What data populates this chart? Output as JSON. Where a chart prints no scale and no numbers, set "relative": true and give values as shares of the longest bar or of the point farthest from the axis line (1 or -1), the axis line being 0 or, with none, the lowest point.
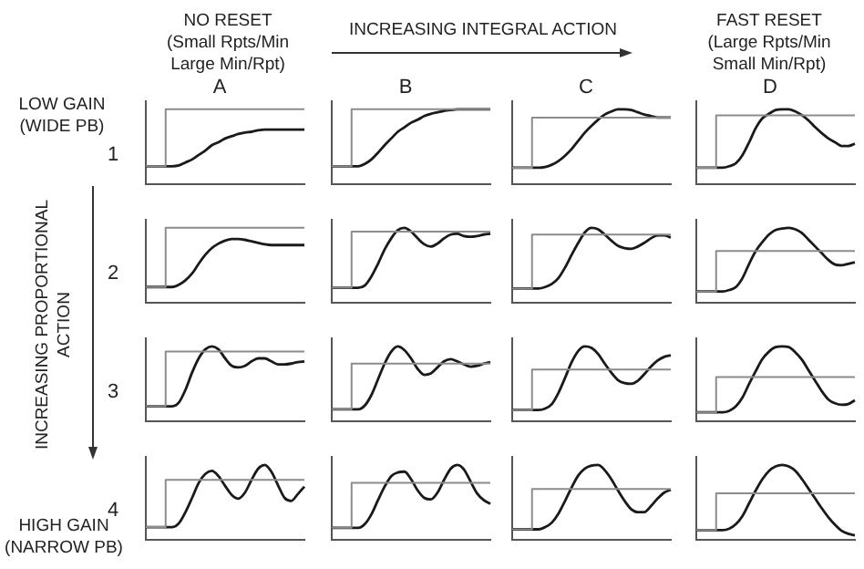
{
  "chart_data": [
    {
      "type": "other",
      "annotations": [
        "NO RESET",
        "(Small Rpts/Min Large Min/Rpt)",
        "INCREASING INTEGRAL ACTION",
        "FAST RESET",
        "(Large Rpts/Min Small Min/Rpt)",
        "LOW GAIN (WIDE PB)",
        "INCREASING PROPORTIONAL ACTION",
        "HIGH GAIN (NARROW PB)"
      ]
    },
    {
      "type": "line",
      "relative": true,
      "title": "A",
      "ylabel": "1",
      "categories": [
        null,
        null,
        null,
        null,
        null,
        null,
        null,
        null,
        null,
        null,
        null,
        null,
        null,
        null,
        null,
        null,
        null,
        null,
        null,
        null,
        null,
        null,
        null,
        null,
        null
      ],
      "series": [
        {
          "type": "step",
          "color": "#8c8c8c",
          "values": [
            0.24,
            0.24,
            0.24,
            0.24,
            1,
            1,
            1,
            1,
            1,
            1,
            1,
            1,
            1,
            1,
            1,
            1,
            1,
            1,
            1,
            1,
            1,
            1,
            1,
            1,
            1
          ]
        },
        {
          "color": "#1a1a1a",
          "values": [
            0.24,
            0.24,
            0.24,
            0.24,
            0.24,
            0.25,
            0.29,
            0.33,
            0.39,
            0.45,
            0.52,
            0.56,
            0.61,
            0.64,
            0.67,
            0.69,
            0.7,
            0.72,
            0.73,
            0.73,
            0.73,
            0.73,
            0.73,
            0.73,
            0.73
          ]
        }
      ]
    },
    {
      "type": "line",
      "relative": true,
      "title": "B",
      "categories": [
        null,
        null,
        null,
        null,
        null,
        null,
        null,
        null,
        null,
        null,
        null,
        null,
        null,
        null,
        null,
        null,
        null,
        null,
        null,
        null,
        null,
        null,
        null,
        null,
        null
      ],
      "series": [
        {
          "type": "step",
          "color": "#8c8c8c",
          "values": [
            0.24,
            0.24,
            0.24,
            0.24,
            1,
            1,
            1,
            1,
            1,
            1,
            1,
            1,
            1,
            1,
            1,
            1,
            1,
            1,
            1,
            1,
            1,
            1,
            1,
            1,
            1
          ]
        },
        {
          "color": "#1a1a1a",
          "values": [
            0.24,
            0.24,
            0.24,
            0.24,
            0.24,
            0.27,
            0.33,
            0.42,
            0.52,
            0.61,
            0.7,
            0.76,
            0.82,
            0.86,
            0.91,
            0.94,
            0.96,
            0.98,
            0.99,
            1,
            1,
            1,
            1,
            1,
            1
          ]
        }
      ]
    },
    {
      "type": "line",
      "relative": true,
      "title": "C",
      "categories": [
        null,
        null,
        null,
        null,
        null,
        null,
        null,
        null,
        null,
        null,
        null,
        null,
        null,
        null,
        null,
        null,
        null,
        null,
        null,
        null,
        null,
        null,
        null,
        null,
        null
      ],
      "series": [
        {
          "type": "step",
          "color": "#8c8c8c",
          "values": [
            0.22,
            0.22,
            0.22,
            0.22,
            0.89,
            0.89,
            0.89,
            0.89,
            0.89,
            0.89,
            0.89,
            0.89,
            0.89,
            0.89,
            0.89,
            0.89,
            0.89,
            0.89,
            0.89,
            0.89,
            0.89,
            0.89,
            0.89,
            0.89,
            0.89
          ]
        },
        {
          "color": "#1a1a1a",
          "values": [
            0.22,
            0.22,
            0.22,
            0.22,
            0.22,
            0.23,
            0.26,
            0.31,
            0.38,
            0.47,
            0.58,
            0.69,
            0.78,
            0.86,
            0.93,
            0.97,
            1,
            1,
            0.99,
            0.96,
            0.93,
            0.91,
            0.89,
            0.89,
            0.89
          ]
        }
      ]
    },
    {
      "type": "line",
      "relative": true,
      "title": "D",
      "categories": [
        null,
        null,
        null,
        null,
        null,
        null,
        null,
        null,
        null,
        null,
        null,
        null,
        null,
        null,
        null,
        null,
        null,
        null,
        null,
        null,
        null,
        null,
        null,
        null,
        null
      ],
      "series": [
        {
          "type": "step",
          "color": "#8c8c8c",
          "values": [
            0.22,
            0.22,
            0.22,
            0.22,
            0.92,
            0.92,
            0.92,
            0.92,
            0.92,
            0.92,
            0.92,
            0.92,
            0.92,
            0.92,
            0.92,
            0.92,
            0.92,
            0.92,
            0.92,
            0.92,
            0.92,
            0.92,
            0.92,
            0.92,
            0.92
          ]
        },
        {
          "color": "#1a1a1a",
          "values": [
            0.22,
            0.22,
            0.22,
            0.22,
            0.22,
            0.24,
            0.28,
            0.39,
            0.56,
            0.75,
            0.88,
            0.94,
            0.99,
            1,
            1,
            0.97,
            0.92,
            0.85,
            0.76,
            0.68,
            0.61,
            0.56,
            0.51,
            0.51,
            0.54
          ]
        }
      ]
    },
    {
      "type": "line",
      "relative": true,
      "ylabel": "2",
      "categories": [
        null,
        null,
        null,
        null,
        null,
        null,
        null,
        null,
        null,
        null,
        null,
        null,
        null,
        null,
        null,
        null,
        null,
        null,
        null,
        null,
        null,
        null,
        null,
        null,
        null
      ],
      "series": [
        {
          "type": "step",
          "color": "#8c8c8c",
          "values": [
            0.21,
            0.21,
            0.21,
            0.21,
            1,
            1,
            1,
            1,
            1,
            1,
            1,
            1,
            1,
            1,
            1,
            1,
            1,
            1,
            1,
            1,
            1,
            1,
            1,
            1,
            1
          ]
        },
        {
          "color": "#1a1a1a",
          "values": [
            0.21,
            0.21,
            0.21,
            0.21,
            0.21,
            0.24,
            0.3,
            0.39,
            0.52,
            0.64,
            0.73,
            0.79,
            0.83,
            0.85,
            0.85,
            0.84,
            0.82,
            0.8,
            0.78,
            0.77,
            0.77,
            0.77,
            0.77,
            0.77,
            0.77
          ]
        }
      ]
    },
    {
      "type": "line",
      "relative": true,
      "categories": [
        null,
        null,
        null,
        null,
        null,
        null,
        null,
        null,
        null,
        null,
        null,
        null,
        null,
        null,
        null,
        null,
        null,
        null,
        null,
        null,
        null,
        null,
        null,
        null,
        null
      ],
      "series": [
        {
          "type": "step",
          "color": "#8c8c8c",
          "values": [
            0.2,
            0.2,
            0.2,
            0.2,
            0.95,
            0.95,
            0.95,
            0.95,
            0.95,
            0.95,
            0.95,
            0.95,
            0.95,
            0.95,
            0.95,
            0.95,
            0.95,
            0.95,
            0.95,
            0.95,
            0.95,
            0.95,
            0.95,
            0.95,
            0.95
          ]
        },
        {
          "color": "#1a1a1a",
          "values": [
            0.2,
            0.2,
            0.2,
            0.2,
            0.2,
            0.23,
            0.35,
            0.52,
            0.71,
            0.86,
            0.97,
            1,
            0.95,
            0.86,
            0.78,
            0.75,
            0.79,
            0.86,
            0.91,
            0.92,
            0.89,
            0.88,
            0.89,
            0.91,
            0.92
          ]
        }
      ]
    },
    {
      "type": "line",
      "relative": true,
      "categories": [
        null,
        null,
        null,
        null,
        null,
        null,
        null,
        null,
        null,
        null,
        null,
        null,
        null,
        null,
        null,
        null,
        null,
        null,
        null,
        null,
        null,
        null,
        null,
        null,
        null
      ],
      "series": [
        {
          "type": "step",
          "color": "#8c8c8c",
          "values": [
            0.19,
            0.19,
            0.19,
            0.19,
            0.91,
            0.91,
            0.91,
            0.91,
            0.91,
            0.91,
            0.91,
            0.91,
            0.91,
            0.91,
            0.91,
            0.91,
            0.91,
            0.91,
            0.91,
            0.91,
            0.91,
            0.91,
            0.91,
            0.91,
            0.91
          ]
        },
        {
          "color": "#1a1a1a",
          "values": [
            0.19,
            0.19,
            0.19,
            0.19,
            0.19,
            0.21,
            0.25,
            0.33,
            0.47,
            0.64,
            0.8,
            0.94,
            1,
            0.98,
            0.91,
            0.83,
            0.76,
            0.73,
            0.72,
            0.75,
            0.8,
            0.86,
            0.9,
            0.9,
            0.87
          ]
        }
      ]
    },
    {
      "type": "line",
      "relative": true,
      "categories": [
        null,
        null,
        null,
        null,
        null,
        null,
        null,
        null,
        null,
        null,
        null,
        null,
        null,
        null,
        null,
        null,
        null,
        null,
        null,
        null,
        null,
        null,
        null,
        null,
        null
      ],
      "series": [
        {
          "type": "step",
          "color": "#8c8c8c",
          "values": [
            0.15,
            0.15,
            0.15,
            0.15,
            0.69,
            0.69,
            0.69,
            0.69,
            0.69,
            0.69,
            0.69,
            0.69,
            0.69,
            0.69,
            0.69,
            0.69,
            0.69,
            0.69,
            0.69,
            0.69,
            0.69,
            0.69,
            0.69,
            0.69,
            0.69
          ]
        },
        {
          "color": "#1a1a1a",
          "values": [
            0.15,
            0.15,
            0.15,
            0.15,
            0.15,
            0.17,
            0.21,
            0.33,
            0.52,
            0.69,
            0.81,
            0.91,
            0.97,
            0.99,
            1,
            0.98,
            0.93,
            0.84,
            0.75,
            0.66,
            0.57,
            0.51,
            0.5,
            0.52,
            0.54
          ]
        }
      ]
    },
    {
      "type": "line",
      "relative": true,
      "ylabel": "3",
      "categories": [
        null,
        null,
        null,
        null,
        null,
        null,
        null,
        null,
        null,
        null,
        null,
        null,
        null,
        null,
        null,
        null,
        null,
        null,
        null,
        null,
        null,
        null,
        null,
        null,
        null
      ],
      "series": [
        {
          "type": "step",
          "color": "#8c8c8c",
          "values": [
            0.2,
            0.2,
            0.2,
            0.2,
            0.93,
            0.93,
            0.93,
            0.93,
            0.93,
            0.93,
            0.93,
            0.93,
            0.93,
            0.93,
            0.93,
            0.93,
            0.93,
            0.93,
            0.93,
            0.93,
            0.93,
            0.93,
            0.93,
            0.93,
            0.93
          ]
        },
        {
          "color": "#1a1a1a",
          "values": [
            0.2,
            0.2,
            0.2,
            0.2,
            0.2,
            0.25,
            0.42,
            0.65,
            0.84,
            0.96,
            1,
            0.96,
            0.84,
            0.74,
            0.72,
            0.74,
            0.8,
            0.84,
            0.84,
            0.8,
            0.76,
            0.76,
            0.77,
            0.79,
            0.8
          ]
        }
      ]
    },
    {
      "type": "line",
      "relative": true,
      "categories": [
        null,
        null,
        null,
        null,
        null,
        null,
        null,
        null,
        null,
        null,
        null,
        null,
        null,
        null,
        null,
        null,
        null,
        null,
        null,
        null,
        null,
        null,
        null,
        null,
        null
      ],
      "series": [
        {
          "type": "step",
          "color": "#8c8c8c",
          "values": [
            0.16,
            0.16,
            0.16,
            0.16,
            0.77,
            0.77,
            0.77,
            0.77,
            0.77,
            0.77,
            0.77,
            0.77,
            0.77,
            0.77,
            0.77,
            0.77,
            0.77,
            0.77,
            0.77,
            0.77,
            0.77,
            0.77,
            0.77,
            0.77,
            0.77
          ]
        },
        {
          "color": "#1a1a1a",
          "values": [
            0.16,
            0.16,
            0.16,
            0.16,
            0.16,
            0.21,
            0.35,
            0.56,
            0.77,
            0.93,
            1,
            0.95,
            0.84,
            0.7,
            0.62,
            0.64,
            0.72,
            0.8,
            0.83,
            0.8,
            0.76,
            0.73,
            0.74,
            0.77,
            0.79
          ]
        }
      ]
    },
    {
      "type": "line",
      "relative": true,
      "categories": [
        null,
        null,
        null,
        null,
        null,
        null,
        null,
        null,
        null,
        null,
        null,
        null,
        null,
        null,
        null,
        null,
        null,
        null,
        null,
        null,
        null,
        null,
        null,
        null,
        null
      ],
      "series": [
        {
          "type": "step",
          "color": "#8c8c8c",
          "values": [
            0.15,
            0.15,
            0.15,
            0.15,
            0.69,
            0.69,
            0.69,
            0.69,
            0.69,
            0.69,
            0.69,
            0.69,
            0.69,
            0.69,
            0.69,
            0.69,
            0.69,
            0.69,
            0.69,
            0.69,
            0.69,
            0.69,
            0.69,
            0.69,
            0.69
          ]
        },
        {
          "color": "#1a1a1a",
          "values": [
            0.15,
            0.15,
            0.15,
            0.15,
            0.15,
            0.17,
            0.23,
            0.38,
            0.58,
            0.79,
            0.94,
            1,
            0.98,
            0.9,
            0.77,
            0.65,
            0.55,
            0.51,
            0.5,
            0.54,
            0.63,
            0.73,
            0.81,
            0.86,
            0.88
          ]
        }
      ]
    },
    {
      "type": "line",
      "relative": true,
      "categories": [
        null,
        null,
        null,
        null,
        null,
        null,
        null,
        null,
        null,
        null,
        null,
        null,
        null,
        null,
        null,
        null,
        null,
        null,
        null,
        null,
        null,
        null,
        null,
        null,
        null
      ],
      "series": [
        {
          "type": "step",
          "color": "#8c8c8c",
          "values": [
            0.12,
            0.12,
            0.12,
            0.12,
            0.59,
            0.59,
            0.59,
            0.59,
            0.59,
            0.59,
            0.59,
            0.59,
            0.59,
            0.59,
            0.59,
            0.59,
            0.59,
            0.59,
            0.59,
            0.59,
            0.59,
            0.59,
            0.59,
            0.59,
            0.59
          ]
        },
        {
          "color": "#1a1a1a",
          "values": [
            0.12,
            0.12,
            0.12,
            0.12,
            0.12,
            0.14,
            0.2,
            0.32,
            0.5,
            0.67,
            0.83,
            0.93,
            0.99,
            1,
            0.99,
            0.92,
            0.82,
            0.68,
            0.54,
            0.4,
            0.29,
            0.24,
            0.22,
            0.23,
            0.28
          ]
        }
      ]
    },
    {
      "type": "line",
      "relative": true,
      "ylabel": "4",
      "categories": [
        null,
        null,
        null,
        null,
        null,
        null,
        null,
        null,
        null,
        null,
        null,
        null,
        null,
        null,
        null,
        null,
        null,
        null,
        null,
        null,
        null,
        null,
        null,
        null,
        null
      ],
      "series": [
        {
          "type": "step",
          "color": "#8c8c8c",
          "values": [
            0.17,
            0.17,
            0.17,
            0.17,
            0.8,
            0.8,
            0.8,
            0.8,
            0.8,
            0.8,
            0.8,
            0.8,
            0.8,
            0.8,
            0.8,
            0.8,
            0.8,
            0.8,
            0.8,
            0.8,
            0.8,
            0.8,
            0.8,
            0.8,
            0.8
          ]
        },
        {
          "color": "#1a1a1a",
          "values": [
            0.17,
            0.17,
            0.17,
            0.17,
            0.17,
            0.22,
            0.37,
            0.56,
            0.76,
            0.88,
            0.92,
            0.85,
            0.72,
            0.6,
            0.55,
            0.63,
            0.8,
            0.95,
            1,
            0.91,
            0.73,
            0.56,
            0.52,
            0.61,
            0.71
          ]
        }
      ]
    },
    {
      "type": "line",
      "relative": true,
      "categories": [
        null,
        null,
        null,
        null,
        null,
        null,
        null,
        null,
        null,
        null,
        null,
        null,
        null,
        null,
        null,
        null,
        null,
        null,
        null,
        null,
        null,
        null,
        null,
        null,
        null
      ],
      "series": [
        {
          "type": "step",
          "color": "#8c8c8c",
          "values": [
            0.16,
            0.16,
            0.16,
            0.16,
            0.76,
            0.76,
            0.76,
            0.76,
            0.76,
            0.76,
            0.76,
            0.76,
            0.76,
            0.76,
            0.76,
            0.76,
            0.76,
            0.76,
            0.76,
            0.76,
            0.76,
            0.76,
            0.76,
            0.76,
            0.76
          ]
        },
        {
          "color": "#1a1a1a",
          "values": [
            0.16,
            0.16,
            0.16,
            0.16,
            0.16,
            0.21,
            0.34,
            0.53,
            0.71,
            0.85,
            0.9,
            0.91,
            0.81,
            0.66,
            0.56,
            0.54,
            0.63,
            0.8,
            0.95,
            1,
            0.94,
            0.78,
            0.62,
            0.53,
            0.48
          ]
        }
      ]
    },
    {
      "type": "line",
      "relative": true,
      "categories": [
        null,
        null,
        null,
        null,
        null,
        null,
        null,
        null,
        null,
        null,
        null,
        null,
        null,
        null,
        null,
        null,
        null,
        null,
        null,
        null,
        null,
        null,
        null,
        null,
        null
      ],
      "series": [
        {
          "type": "step",
          "color": "#8c8c8c",
          "values": [
            0.14,
            0.14,
            0.14,
            0.14,
            0.68,
            0.68,
            0.68,
            0.68,
            0.68,
            0.68,
            0.68,
            0.68,
            0.68,
            0.68,
            0.68,
            0.68,
            0.68,
            0.68,
            0.68,
            0.68,
            0.68,
            0.68,
            0.68,
            0.68,
            0.68
          ]
        },
        {
          "color": "#1a1a1a",
          "values": [
            0.14,
            0.14,
            0.14,
            0.14,
            0.14,
            0.17,
            0.23,
            0.35,
            0.52,
            0.7,
            0.86,
            0.95,
            0.99,
            1,
            0.93,
            0.81,
            0.66,
            0.52,
            0.41,
            0.37,
            0.37,
            0.45,
            0.55,
            0.63,
            0.67
          ]
        }
      ]
    },
    {
      "type": "line",
      "relative": true,
      "categories": [
        null,
        null,
        null,
        null,
        null,
        null,
        null,
        null,
        null,
        null,
        null,
        null,
        null,
        null,
        null,
        null,
        null,
        null,
        null,
        null,
        null,
        null,
        null,
        null,
        null
      ],
      "series": [
        {
          "type": "step",
          "color": "#8c8c8c",
          "values": [
            0.13,
            0.13,
            0.13,
            0.13,
            0.62,
            0.62,
            0.62,
            0.62,
            0.62,
            0.62,
            0.62,
            0.62,
            0.62,
            0.62,
            0.62,
            0.62,
            0.62,
            0.62,
            0.62,
            0.62,
            0.62,
            0.62,
            0.62,
            0.62,
            0.62
          ]
        },
        {
          "color": "#1a1a1a",
          "values": [
            0.13,
            0.13,
            0.13,
            0.13,
            0.13,
            0.15,
            0.21,
            0.32,
            0.49,
            0.66,
            0.81,
            0.92,
            0.98,
            1,
            0.98,
            0.92,
            0.81,
            0.68,
            0.55,
            0.42,
            0.3,
            0.2,
            0.12,
            0.08,
            0.06
          ]
        }
      ]
    }
  ]
}
